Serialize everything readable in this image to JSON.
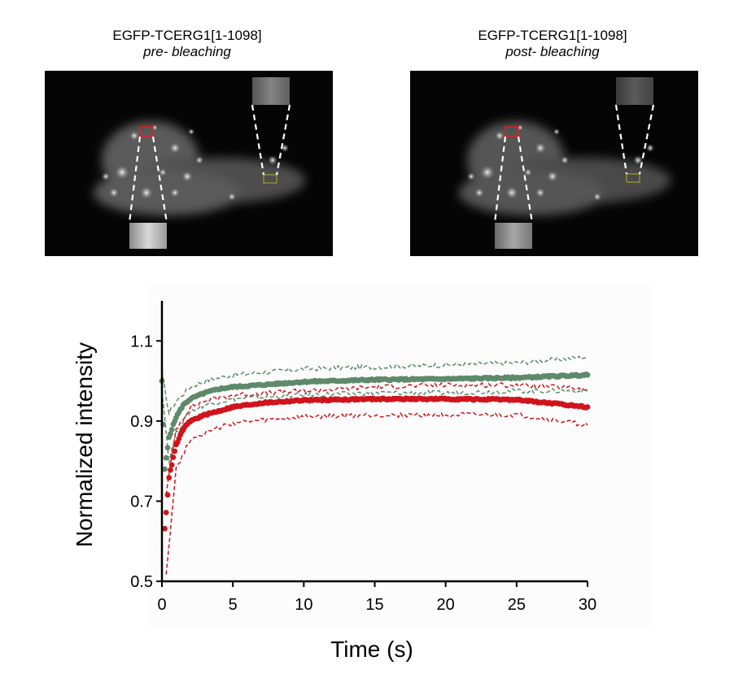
{
  "panels": [
    {
      "title": "EGFP-TCERG1[1-1098]",
      "subtitle": "pre- bleaching"
    },
    {
      "title": "EGFP-TCERG1[1-1098]",
      "subtitle": "post- bleaching"
    }
  ],
  "chart_data": {
    "type": "scatter",
    "xlabel": "Time (s)",
    "ylabel": "Normalized intensity",
    "xlim": [
      0,
      30
    ],
    "ylim": [
      0.5,
      1.2
    ],
    "xticks": [
      0,
      5,
      10,
      15,
      20,
      25,
      30
    ],
    "yticks": [
      0.5,
      0.7,
      0.9,
      1.1
    ],
    "grid": false,
    "legend": "none",
    "series": [
      {
        "color": "#5e8a6b",
        "style": "points with dashed ± error lines",
        "points": [
          [
            0,
            1.0
          ],
          [
            0.2,
            0.78
          ],
          [
            0.5,
            0.86
          ],
          [
            1,
            0.91
          ],
          [
            1.5,
            0.94
          ],
          [
            2,
            0.955
          ],
          [
            3,
            0.97
          ],
          [
            4,
            0.98
          ],
          [
            5,
            0.985
          ],
          [
            7,
            0.99
          ],
          [
            10,
            0.998
          ],
          [
            15,
            1.003
          ],
          [
            20,
            1.005
          ],
          [
            25,
            1.008
          ],
          [
            30,
            1.015
          ]
        ],
        "upper": [
          [
            0,
            1.02
          ],
          [
            0.5,
            0.92
          ],
          [
            1,
            0.95
          ],
          [
            2,
            0.985
          ],
          [
            3,
            1.0
          ],
          [
            5,
            1.015
          ],
          [
            10,
            1.03
          ],
          [
            15,
            1.035
          ],
          [
            20,
            1.04
          ],
          [
            25,
            1.045
          ],
          [
            30,
            1.06
          ]
        ],
        "lower": [
          [
            0,
            0.98
          ],
          [
            0.5,
            0.8
          ],
          [
            1,
            0.87
          ],
          [
            2,
            0.925
          ],
          [
            3,
            0.94
          ],
          [
            5,
            0.955
          ],
          [
            10,
            0.965
          ],
          [
            15,
            0.97
          ],
          [
            20,
            0.97
          ],
          [
            25,
            0.975
          ],
          [
            30,
            0.975
          ]
        ]
      },
      {
        "color": "#d0141c",
        "style": "points with dashed ± error lines",
        "points": [
          [
            0.2,
            0.63
          ],
          [
            0.5,
            0.76
          ],
          [
            1,
            0.84
          ],
          [
            1.5,
            0.88
          ],
          [
            2,
            0.9
          ],
          [
            3,
            0.915
          ],
          [
            4,
            0.925
          ],
          [
            5,
            0.935
          ],
          [
            7,
            0.945
          ],
          [
            10,
            0.952
          ],
          [
            15,
            0.955
          ],
          [
            20,
            0.955
          ],
          [
            25,
            0.953
          ],
          [
            30,
            0.935
          ]
        ],
        "upper": [
          [
            0.3,
            0.72
          ],
          [
            1,
            0.88
          ],
          [
            2,
            0.935
          ],
          [
            3,
            0.95
          ],
          [
            5,
            0.965
          ],
          [
            10,
            0.975
          ],
          [
            15,
            0.985
          ],
          [
            20,
            0.99
          ],
          [
            25,
            0.99
          ],
          [
            30,
            0.98
          ]
        ],
        "lower": [
          [
            0.3,
            0.52
          ],
          [
            1,
            0.78
          ],
          [
            2,
            0.855
          ],
          [
            3,
            0.87
          ],
          [
            5,
            0.895
          ],
          [
            10,
            0.91
          ],
          [
            15,
            0.915
          ],
          [
            20,
            0.915
          ],
          [
            25,
            0.915
          ],
          [
            30,
            0.89
          ]
        ]
      }
    ]
  }
}
